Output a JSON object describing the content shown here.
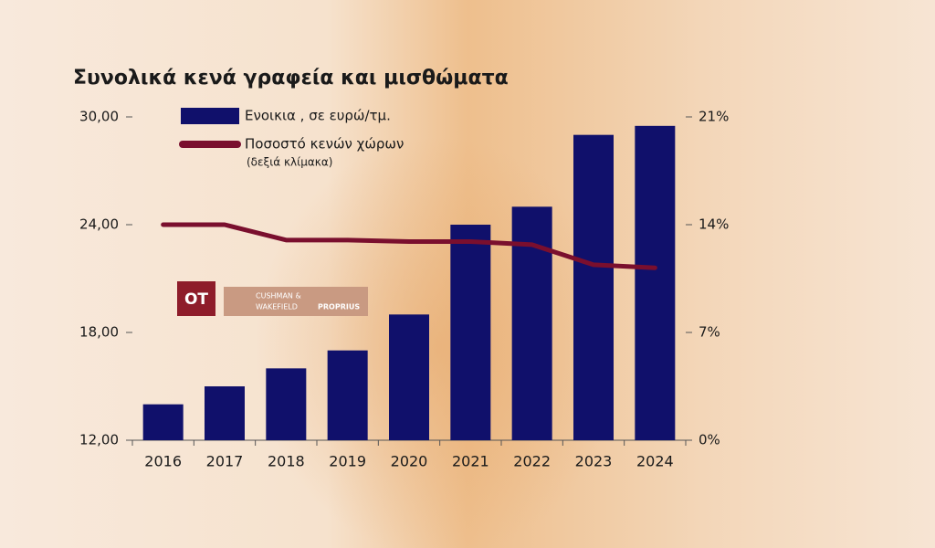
{
  "chart_data": {
    "type": "bar-line",
    "title": "Συνολικά κενά γραφεία και μισθώματα",
    "categories": [
      "2016",
      "2017",
      "2018",
      "2019",
      "2020",
      "2021",
      "2022",
      "2023",
      "2024"
    ],
    "series": [
      {
        "name": "Ενοικια , σε ευρώ/τμ.",
        "type": "bar",
        "color": "#10106b",
        "values": [
          14.0,
          15.0,
          16.0,
          17.0,
          19.0,
          24.0,
          25.0,
          29.0,
          29.5
        ]
      },
      {
        "name": "Ποσοστό κενών χώρων",
        "legend_note": "(δεξιά κλίμακα)",
        "type": "line",
        "axis": "y2",
        "color": "#7a0f2e",
        "values": [
          14.0,
          14.0,
          13.0,
          13.0,
          12.9,
          12.9,
          12.7,
          11.4,
          11.2
        ]
      }
    ],
    "ylim": [
      12,
      30
    ],
    "yticks": [
      {
        "value": 12,
        "label": "12,00"
      },
      {
        "value": 18,
        "label": "18,00"
      },
      {
        "value": 24,
        "label": "24,00"
      },
      {
        "value": 30,
        "label": "30,00"
      }
    ],
    "y2lim": [
      0,
      21
    ],
    "y2ticks": [
      {
        "value": 0,
        "label": "0%"
      },
      {
        "value": 7,
        "label": "7%"
      },
      {
        "value": 14,
        "label": "14%"
      },
      {
        "value": 21,
        "label": "21%"
      }
    ],
    "logos": [
      "OT",
      "CUSHMAN &",
      "WAKEFIELD",
      "PROPRIUS"
    ]
  }
}
